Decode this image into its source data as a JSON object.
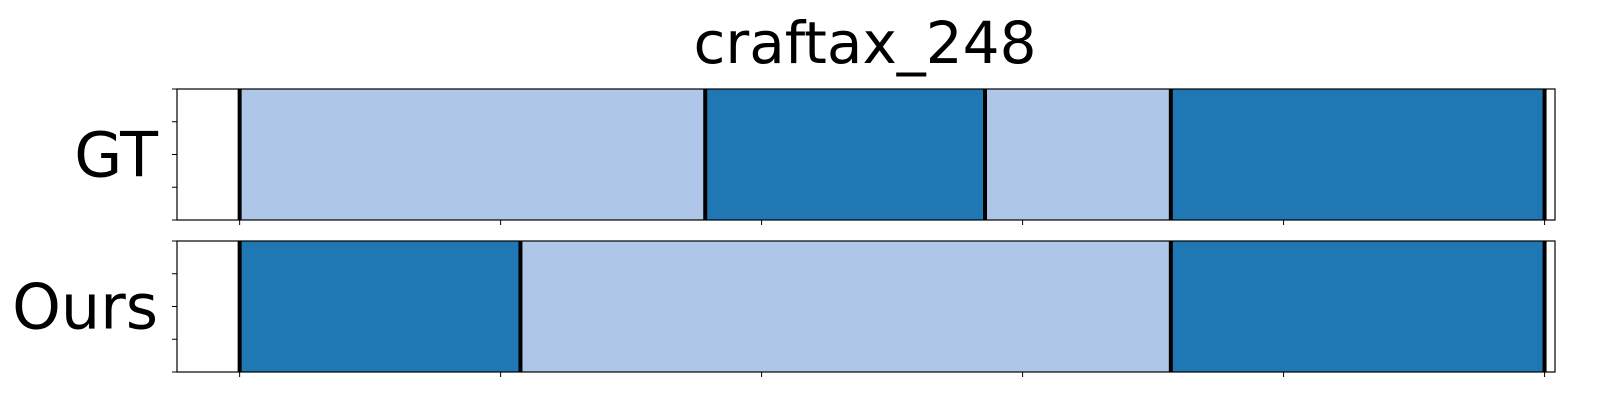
{
  "chart_data": {
    "type": "bar",
    "title": "craftax_248",
    "xlim": [
      0,
      1320
    ],
    "x_ticks": [
      60,
      310,
      560,
      810,
      1060,
      1310
    ],
    "colors": {
      "dark": "#1f77b4",
      "light": "#aec7e8",
      "boundary": "#000000"
    },
    "series": [
      {
        "name": "GT",
        "segments": [
          {
            "start": 60,
            "end": 506,
            "color": "light"
          },
          {
            "start": 506,
            "end": 774,
            "color": "dark"
          },
          {
            "start": 774,
            "end": 952,
            "color": "light"
          },
          {
            "start": 952,
            "end": 1310,
            "color": "dark"
          }
        ]
      },
      {
        "name": "Ours",
        "segments": [
          {
            "start": 60,
            "end": 329,
            "color": "dark"
          },
          {
            "start": 329,
            "end": 952,
            "color": "light"
          },
          {
            "start": 952,
            "end": 1310,
            "color": "dark"
          }
        ]
      }
    ]
  }
}
